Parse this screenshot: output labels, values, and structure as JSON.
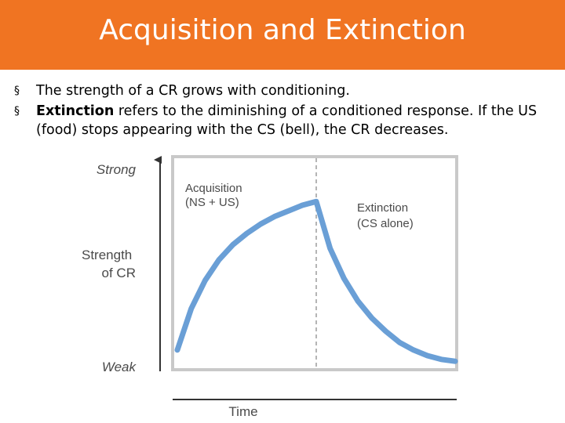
{
  "slide": {
    "title": "Acquisition and Extinction",
    "accent_color": "#f07422",
    "bullets": [
      {
        "marker": "§",
        "bold": "",
        "text": "The strength of a CR grows with conditioning."
      },
      {
        "marker": "§",
        "bold": "Extinction",
        "text": " refers to the diminishing of a conditioned response. If the US (food) stops appearing with the CS (bell), the CR decreases."
      }
    ]
  },
  "chart_data": {
    "type": "line",
    "xlabel": "Time",
    "ylabel": "Strength of CR",
    "ytick_top": "Strong",
    "ytick_bottom": "Weak",
    "line_color": "#6a9fd6",
    "phase_boundary_x": 0.5,
    "phases": [
      {
        "label": "Acquisition (NS + US)"
      },
      {
        "label": "Extinction (CS alone)"
      }
    ],
    "series": [
      {
        "x": [
          0,
          0.05,
          0.1,
          0.15,
          0.2,
          0.25,
          0.3,
          0.35,
          0.4,
          0.45,
          0.5,
          0.55,
          0.6,
          0.65,
          0.7,
          0.75,
          0.8,
          0.85,
          0.9,
          0.95,
          1.0
        ],
        "y": [
          0.08,
          0.3,
          0.45,
          0.56,
          0.64,
          0.7,
          0.75,
          0.79,
          0.82,
          0.85,
          0.87,
          0.62,
          0.46,
          0.34,
          0.25,
          0.18,
          0.12,
          0.08,
          0.05,
          0.03,
          0.02
        ]
      }
    ]
  }
}
